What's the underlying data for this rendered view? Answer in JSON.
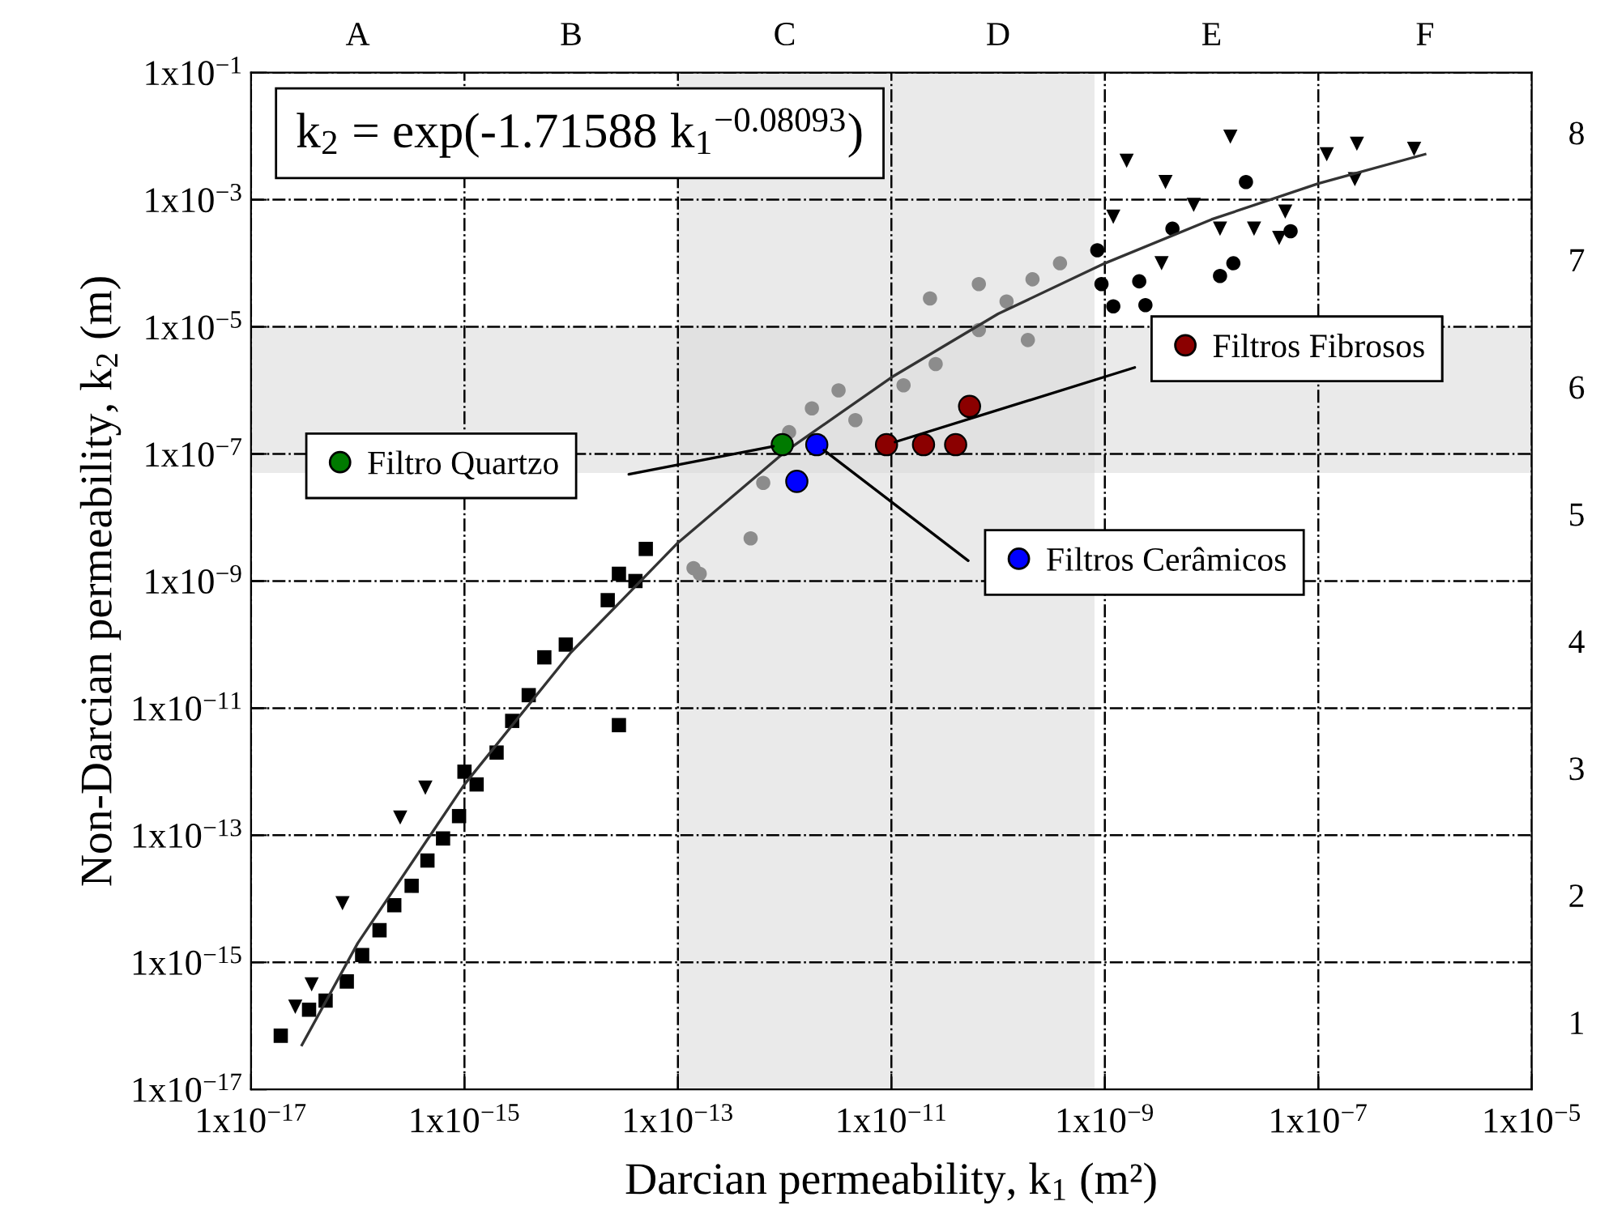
{
  "chart_data": {
    "type": "scatter",
    "xlabel": "Darcian permeability, k$_{1}$ (m²)",
    "ylabel": "Non-Darcian permeability, k$_{2}$ (m)",
    "annotations": [
      "k$_{2}$ = exp(-1.71588 k$_{1}$$^{−0.08093}$)",
      "A",
      "B",
      "C",
      "D",
      "E",
      "F",
      "1",
      "2",
      "3",
      "4",
      "5",
      "6",
      "7",
      "8"
    ],
    "legend": "center",
    "log": "xy",
    "grid": true,
    "xlim": [
      1e-17,
      1e-05
    ],
    "xticks": [
      {
        "value": 1e-17,
        "label": "1x10$^{−17}$"
      },
      {
        "value": 1e-15,
        "label": "1x10$^{−15}$"
      },
      {
        "value": 1e-13,
        "label": "1x10$^{−13}$"
      },
      {
        "value": 1e-11,
        "label": "1x10$^{−11}$"
      },
      {
        "value": 1e-09,
        "label": "1x10$^{−9}$"
      },
      {
        "value": 1e-07,
        "label": "1x10$^{−7}$"
      },
      {
        "value": 1e-05,
        "label": "1x10$^{−5}$"
      }
    ],
    "ylim": [
      1e-17,
      0.1
    ],
    "yticks": [
      {
        "value": 1e-17,
        "label": "1x10$^{−17}$"
      },
      {
        "value": 1e-15,
        "label": "1x10$^{−15}$"
      },
      {
        "value": 1e-13,
        "label": "1x10$^{−13}$"
      },
      {
        "value": 1e-11,
        "label": "1x10$^{−11}$"
      },
      {
        "value": 1e-09,
        "label": "1x10$^{−9}$"
      },
      {
        "value": 1e-07,
        "label": "1x10$^{−7}$"
      },
      {
        "value": 1e-05,
        "label": "1x10$^{−5}$"
      },
      {
        "value": 0.001,
        "label": "1x10$^{−3}$"
      },
      {
        "value": 0.1,
        "label": "1x10$^{−1}$"
      }
    ],
    "bands": [
      {
        "axis": "y",
        "from": 5e-08,
        "to": 1e-05,
        "color": "#d9d9d9"
      },
      {
        "axis": "x",
        "from": 1e-13,
        "to": 8e-10,
        "color": "#d9d9d9"
      }
    ],
    "series": [
      {
        "color": "#000000",
        "marker": "square",
        "x": [
          1.9e-17,
          3.5e-17,
          5e-17,
          7.9e-17,
          1.1e-16,
          1.6e-16,
          2.2e-16,
          3.2e-16,
          4.5e-16,
          6.3e-16,
          8.9e-16,
          1.3e-15,
          2e-15,
          2.8e-15,
          4e-15,
          5.6e-15,
          8.9e-15,
          2.2e-14,
          4e-14,
          5e-14,
          2.8e-14,
          1e-15,
          2.8e-14
        ],
        "values": [
          7e-17,
          1.8e-16,
          2.5e-16,
          5e-16,
          1.3e-15,
          3.2e-15,
          7.9e-15,
          1.6e-14,
          4e-14,
          8.9e-14,
          2e-13,
          6.3e-13,
          2e-12,
          6.3e-12,
          1.6e-11,
          6.3e-11,
          1e-10,
          5e-10,
          1e-09,
          3.2e-09,
          1.3e-09,
          1e-12,
          5.4e-12
        ]
      },
      {
        "color": "#000000",
        "marker": "circle",
        "x": [
          8.5e-10,
          9.3e-10,
          1.2e-09,
          2.4e-09,
          1.2e-08,
          1.6e-08,
          5.5e-08,
          2.1e-09,
          4.3e-09,
          2.1e-08
        ],
        "values": [
          0.00016,
          4.7e-05,
          2.1e-05,
          2.2e-05,
          6.3e-05,
          0.0001,
          0.00032,
          5.2e-05,
          0.00035,
          0.0019
        ]
      },
      {
        "color": "#8c8c8c",
        "marker": "circle",
        "x": [
          2.1e-10,
          6.6e-11,
          2.6e-11,
          1.3e-11,
          1.2e-10,
          3.8e-10,
          2.3e-11,
          6.6e-11,
          1.9e-10,
          3.2e-12,
          4.6e-12,
          1.8e-12,
          1.1e-12,
          6.3e-13,
          4.8e-13,
          1.6e-13,
          1.4e-13
        ],
        "values": [
          5.6e-05,
          8.9e-06,
          2.6e-06,
          1.2e-06,
          2.5e-05,
          0.0001,
          2.8e-05,
          4.7e-05,
          6.2e-06,
          1e-06,
          3.4e-07,
          5.2e-07,
          2.2e-07,
          3.5e-08,
          4.7e-09,
          1.3e-09,
          1.6e-09
        ]
      },
      {
        "color": "#000000",
        "marker": "triangle",
        "x": [
          1.2e-07,
          2.3e-07,
          7.9e-07,
          2.2e-07,
          4.9e-08,
          4.3e-08,
          2.5e-08,
          1.2e-08,
          3.4e-09,
          1.5e-08,
          3.7e-09,
          1.6e-09,
          1.2e-09,
          6.8e-09,
          4.3e-16,
          7.2e-17,
          2.5e-16,
          3.7e-17,
          2.6e-17
        ],
        "values": [
          0.0052,
          0.0076,
          0.0063,
          0.0021,
          0.00065,
          0.00025,
          0.00035,
          0.00035,
          0.0001,
          0.0098,
          0.0019,
          0.0041,
          0.00054,
          0.00083,
          5.6e-13,
          8.5e-15,
          1.9e-13,
          4.5e-16,
          2e-16
        ]
      },
      {
        "type": "line",
        "color": "#333333",
        "marker": "none",
        "x": [
          3e-17,
          1e-16,
          1e-15,
          1e-14,
          1e-13,
          1e-12,
          1e-11,
          1e-10,
          1e-09,
          1e-08,
          1e-07,
          1e-06
        ],
        "values": [
          5e-17,
          2e-15,
          6.3e-13,
          7.6e-11,
          4e-09,
          1.07e-07,
          1.6e-06,
          1.6e-05,
          0.0001,
          0.00049,
          0.0018,
          0.0052
        ]
      },
      {
        "name": "Filtro Quartzo",
        "color": "#007a00",
        "marker": "circle",
        "x": [
          9.5e-13
        ],
        "values": [
          1.4e-07
        ]
      },
      {
        "name": "Filtros Cerâmicos",
        "color": "#0000ff",
        "marker": "circle",
        "x": [
          2e-12,
          1.3e-12
        ],
        "values": [
          1.4e-07,
          3.7e-08
        ]
      },
      {
        "name": "Filtros Fibrosos",
        "color": "#8b0000",
        "marker": "circle",
        "x": [
          9e-12,
          2e-11,
          4e-11,
          5.4e-11
        ],
        "values": [
          1.4e-07,
          1.4e-07,
          1.4e-07,
          5.6e-07
        ]
      }
    ]
  }
}
